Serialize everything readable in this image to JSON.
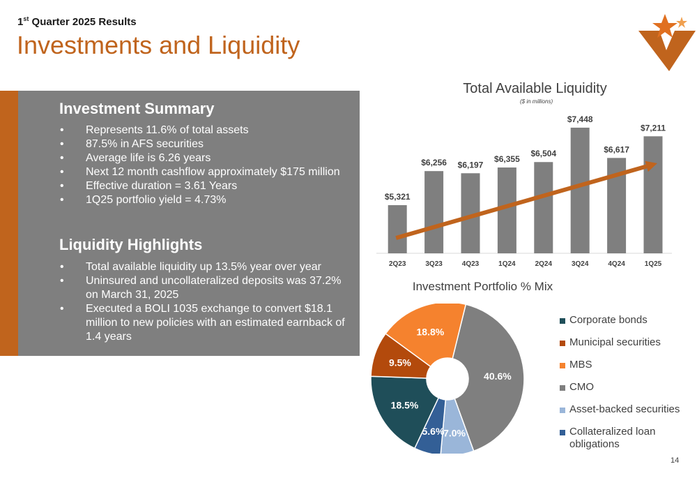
{
  "header": {
    "subtitle_main": "1",
    "subtitle_sup": "st",
    "subtitle_rest": " Quarter 2025 Results",
    "title": "Investments and Liquidity"
  },
  "colors": {
    "accent": "#c0641d",
    "panel": "#7f7f7f",
    "bar": "#7f7f7f",
    "trend_arrow": "#c0641d"
  },
  "investment_summary": {
    "heading": "Investment Summary",
    "bullets": [
      "Represents 11.6% of total assets",
      "87.5% in AFS securities",
      "Average life is 6.26 years",
      "Next 12 month cashflow approximately $175 million",
      "Effective duration = 3.61 Years",
      "1Q25 portfolio yield = 4.73%"
    ]
  },
  "liquidity_highlights": {
    "heading": "Liquidity Highlights",
    "bullets": [
      "Total available liquidity up 13.5% year over year",
      "Uninsured and uncollateralized deposits was 37.2% on March 31, 2025",
      "Executed a BOLI 1035 exchange to convert $18.1 million to new policies with an estimated earnback of 1.4 years"
    ]
  },
  "bullet_char": "•",
  "chart_data": [
    {
      "type": "bar",
      "title": "Total Available Liquidity",
      "subtitle": "($ in millions)",
      "categories": [
        "2Q23",
        "3Q23",
        "4Q23",
        "1Q24",
        "2Q24",
        "3Q24",
        "4Q24",
        "1Q25"
      ],
      "values": [
        5321,
        6256,
        6197,
        6355,
        6504,
        7448,
        6617,
        7211
      ],
      "data_labels": [
        "$5,321",
        "$6,256",
        "$6,197",
        "$6,355",
        "$6,504",
        "$7,448",
        "$6,617",
        "$7,211"
      ],
      "ylim": [
        4000,
        7600
      ],
      "trend_arrow": true,
      "grid": false
    },
    {
      "type": "pie",
      "style": "donut",
      "title": "Investment Portfolio % Mix",
      "slices": [
        {
          "name": "Corporate bonds",
          "value": 18.5,
          "label": "18.5%",
          "color": "#1f4e59"
        },
        {
          "name": "Municipal securities",
          "value": 9.5,
          "label": "9.5%",
          "color": "#b34a0c"
        },
        {
          "name": "MBS",
          "value": 18.8,
          "label": "18.8%",
          "color": "#f5822e"
        },
        {
          "name": "CMO",
          "value": 40.6,
          "label": "40.6%",
          "color": "#7f7f7f"
        },
        {
          "name": "Asset-backed securities",
          "value": 7.0,
          "label": "7.0%",
          "color": "#9ab6d9"
        },
        {
          "name": "Collateralized loan obligations",
          "value": 5.6,
          "label": "5.6%",
          "color": "#335f96"
        }
      ],
      "legend_position": "right"
    }
  ],
  "page_number": "14"
}
